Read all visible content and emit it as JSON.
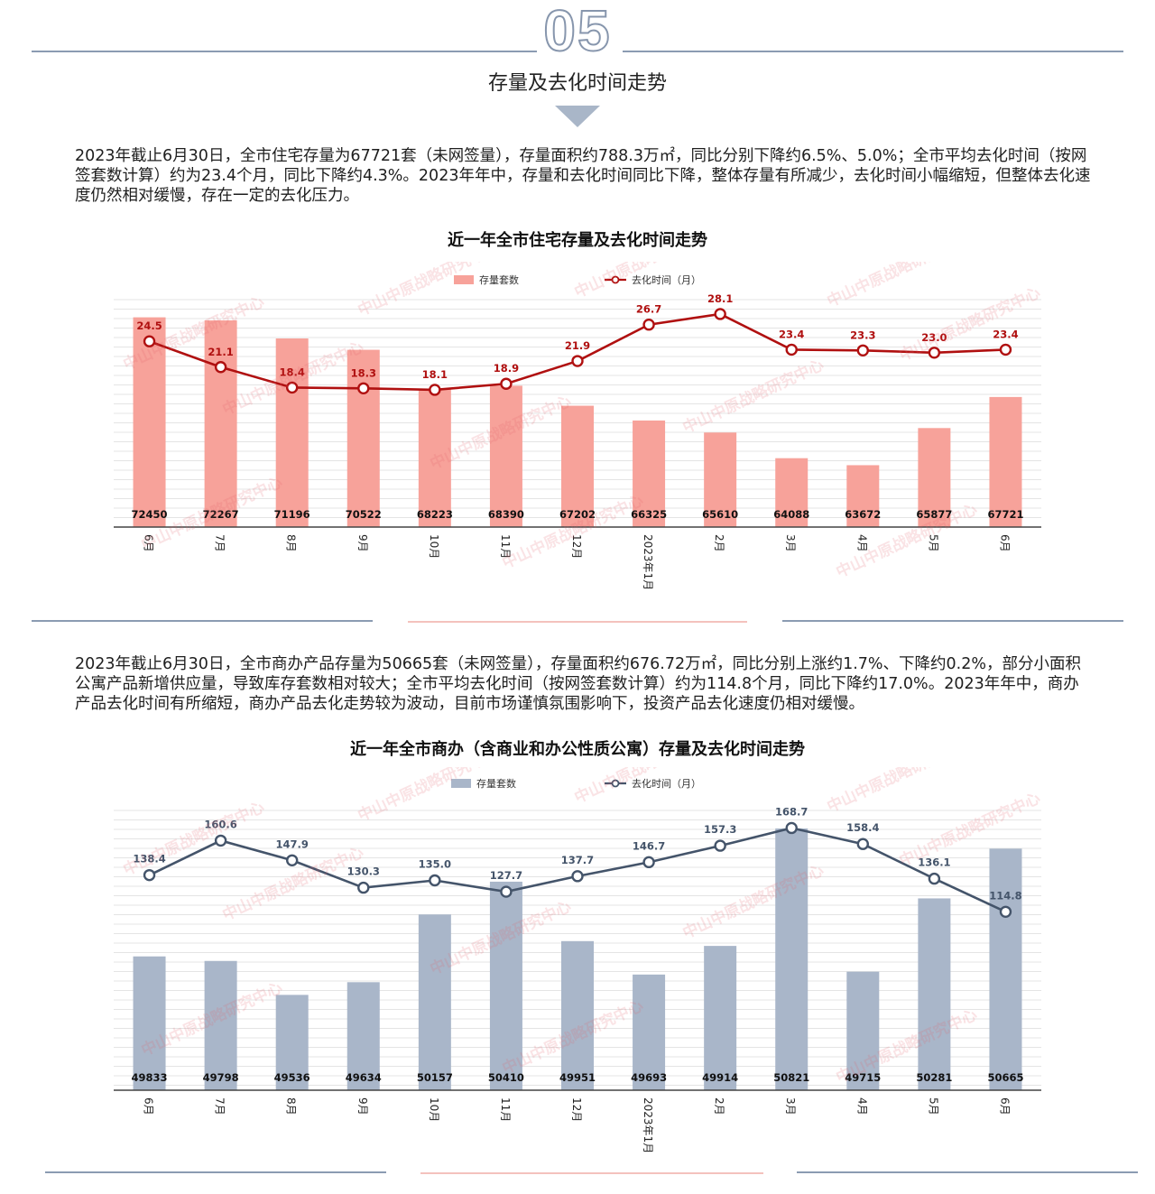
{
  "header": {
    "section_number": "05",
    "section_title": "存量及去化时间走势"
  },
  "paragraphs": {
    "residential": "2023年截止6月30日，全市住宅存量为67721套（未网签量），存量面积约788.3万㎡，同比分别下降约6.5%、5.0%；全市平均去化时间（按网签套数计算）约为23.4个月，同比下降约4.3%。2023年年中，存量和去化时间同比下降，整体存量有所减少，去化时间小幅缩短，但整体去化速度仍然相对缓慢，存在一定的去化压力。",
    "commercial": "2023年截止6月30日，全市商办产品存量为50665套（未网签量），存量面积约676.72万㎡，同比分别上涨约1.7%、下降约0.2%，部分小面积公寓产品新增供应量，导致库存套数相对较大；全市平均去化时间（按网签套数计算）约为114.8个月，同比下降约17.0%。2023年年中，商办产品去化时间有所缩短，商办产品去化走势较为波动，目前市场谨慎氛围影响下，投资产品去化速度仍相对缓慢。"
  },
  "watermark_text": "中山中原战略研究中心",
  "chart_data": [
    {
      "id": "residential",
      "type": "bar",
      "title": "近一年全市住宅存量及去化时间走势",
      "categories": [
        "6月",
        "7月",
        "8月",
        "9月",
        "10月",
        "11月",
        "12月",
        "2023年1月",
        "2月",
        "3月",
        "4月",
        "5月",
        "6月"
      ],
      "series": [
        {
          "name": "存量套数",
          "type": "bar",
          "color": "#f7a29a",
          "values": [
            72450,
            72267,
            71196,
            70522,
            68223,
            68390,
            67202,
            66325,
            65610,
            64088,
            63672,
            65877,
            67721
          ]
        },
        {
          "name": "去化时间（月）",
          "type": "line",
          "color": "#b01010",
          "values": [
            24.5,
            21.1,
            18.4,
            18.3,
            18.1,
            18.9,
            21.9,
            26.7,
            28.1,
            23.4,
            23.3,
            23.0,
            23.4
          ]
        }
      ],
      "bar_axis_range": [
        60000,
        73500
      ],
      "line_axis_range": [
        0,
        30
      ],
      "legend_position": "top-center",
      "grid": true
    },
    {
      "id": "commercial",
      "type": "bar",
      "title": "近一年全市商办（含商业和办公性质公寓）存量及去化时间走势",
      "categories": [
        "6月",
        "7月",
        "8月",
        "9月",
        "10月",
        "11月",
        "12月",
        "2023年1月",
        "2月",
        "3月",
        "4月",
        "5月",
        "6月"
      ],
      "series": [
        {
          "name": "存量套数",
          "type": "bar",
          "color": "#a9b6c9",
          "values": [
            49833,
            49798,
            49536,
            49634,
            50157,
            50410,
            49951,
            49693,
            49914,
            50821,
            49715,
            50281,
            50665
          ]
        },
        {
          "name": "去化时间（月）",
          "type": "line",
          "color": "#44546a",
          "values": [
            138.4,
            160.6,
            147.9,
            130.3,
            135.0,
            127.7,
            137.7,
            146.7,
            157.3,
            168.7,
            158.4,
            136.1,
            114.8
          ]
        }
      ],
      "bar_axis_range": [
        48800,
        50960
      ],
      "line_axis_range": [
        0,
        180
      ],
      "legend_position": "top-center",
      "grid": true
    }
  ]
}
